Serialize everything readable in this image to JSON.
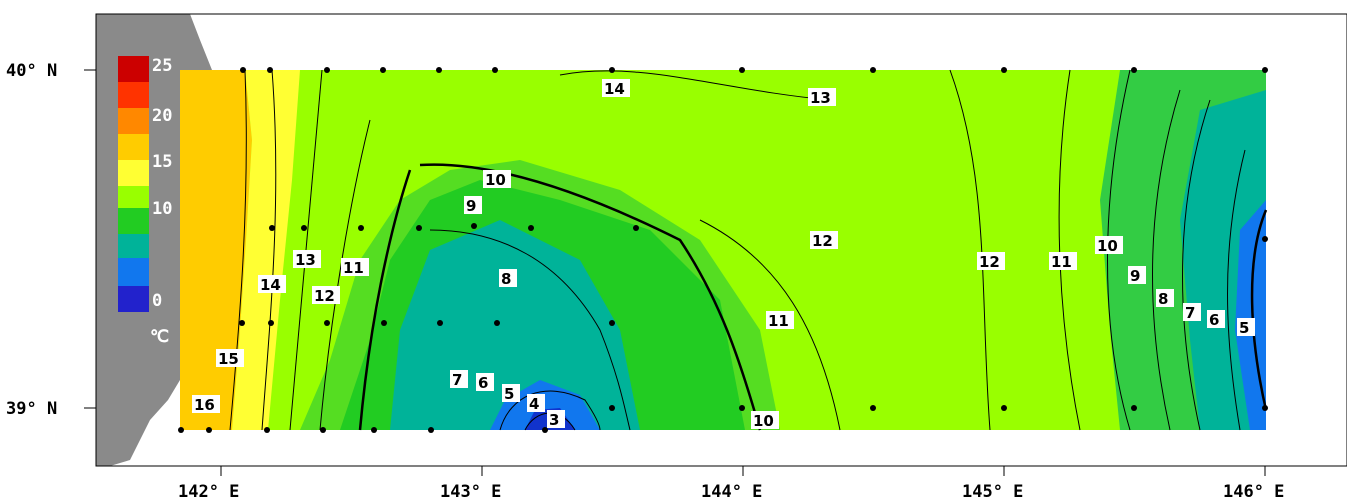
{
  "axes": {
    "lat_labels": [
      "40° N",
      "39° N"
    ],
    "lon_labels": [
      "142° E",
      "143° E",
      "144° E",
      "145° E",
      "146° E"
    ]
  },
  "colorbar": {
    "ticks": [
      "25",
      "20",
      "15",
      "10",
      "0"
    ],
    "unit": "℃",
    "colors": [
      "#cc0000",
      "#ff3300",
      "#ff8800",
      "#ffcc00",
      "#ffff33",
      "#99ff00",
      "#22cc22",
      "#00b399",
      "#1177ee",
      "#2222cc"
    ]
  },
  "contour_labels": [
    "14",
    "13",
    "10",
    "9",
    "12",
    "13",
    "11",
    "14",
    "8",
    "12",
    "12",
    "11",
    "10",
    "9",
    "8",
    "7",
    "6",
    "5",
    "11",
    "15",
    "7",
    "6",
    "5",
    "4",
    "3",
    "16",
    "10"
  ],
  "colors": {
    "land": "#8a8a8a",
    "background": "#ffffff",
    "warm": "#ffcc00",
    "mid": "#99ff00",
    "cool": "#22cc22",
    "cold": "#1177ee"
  }
}
